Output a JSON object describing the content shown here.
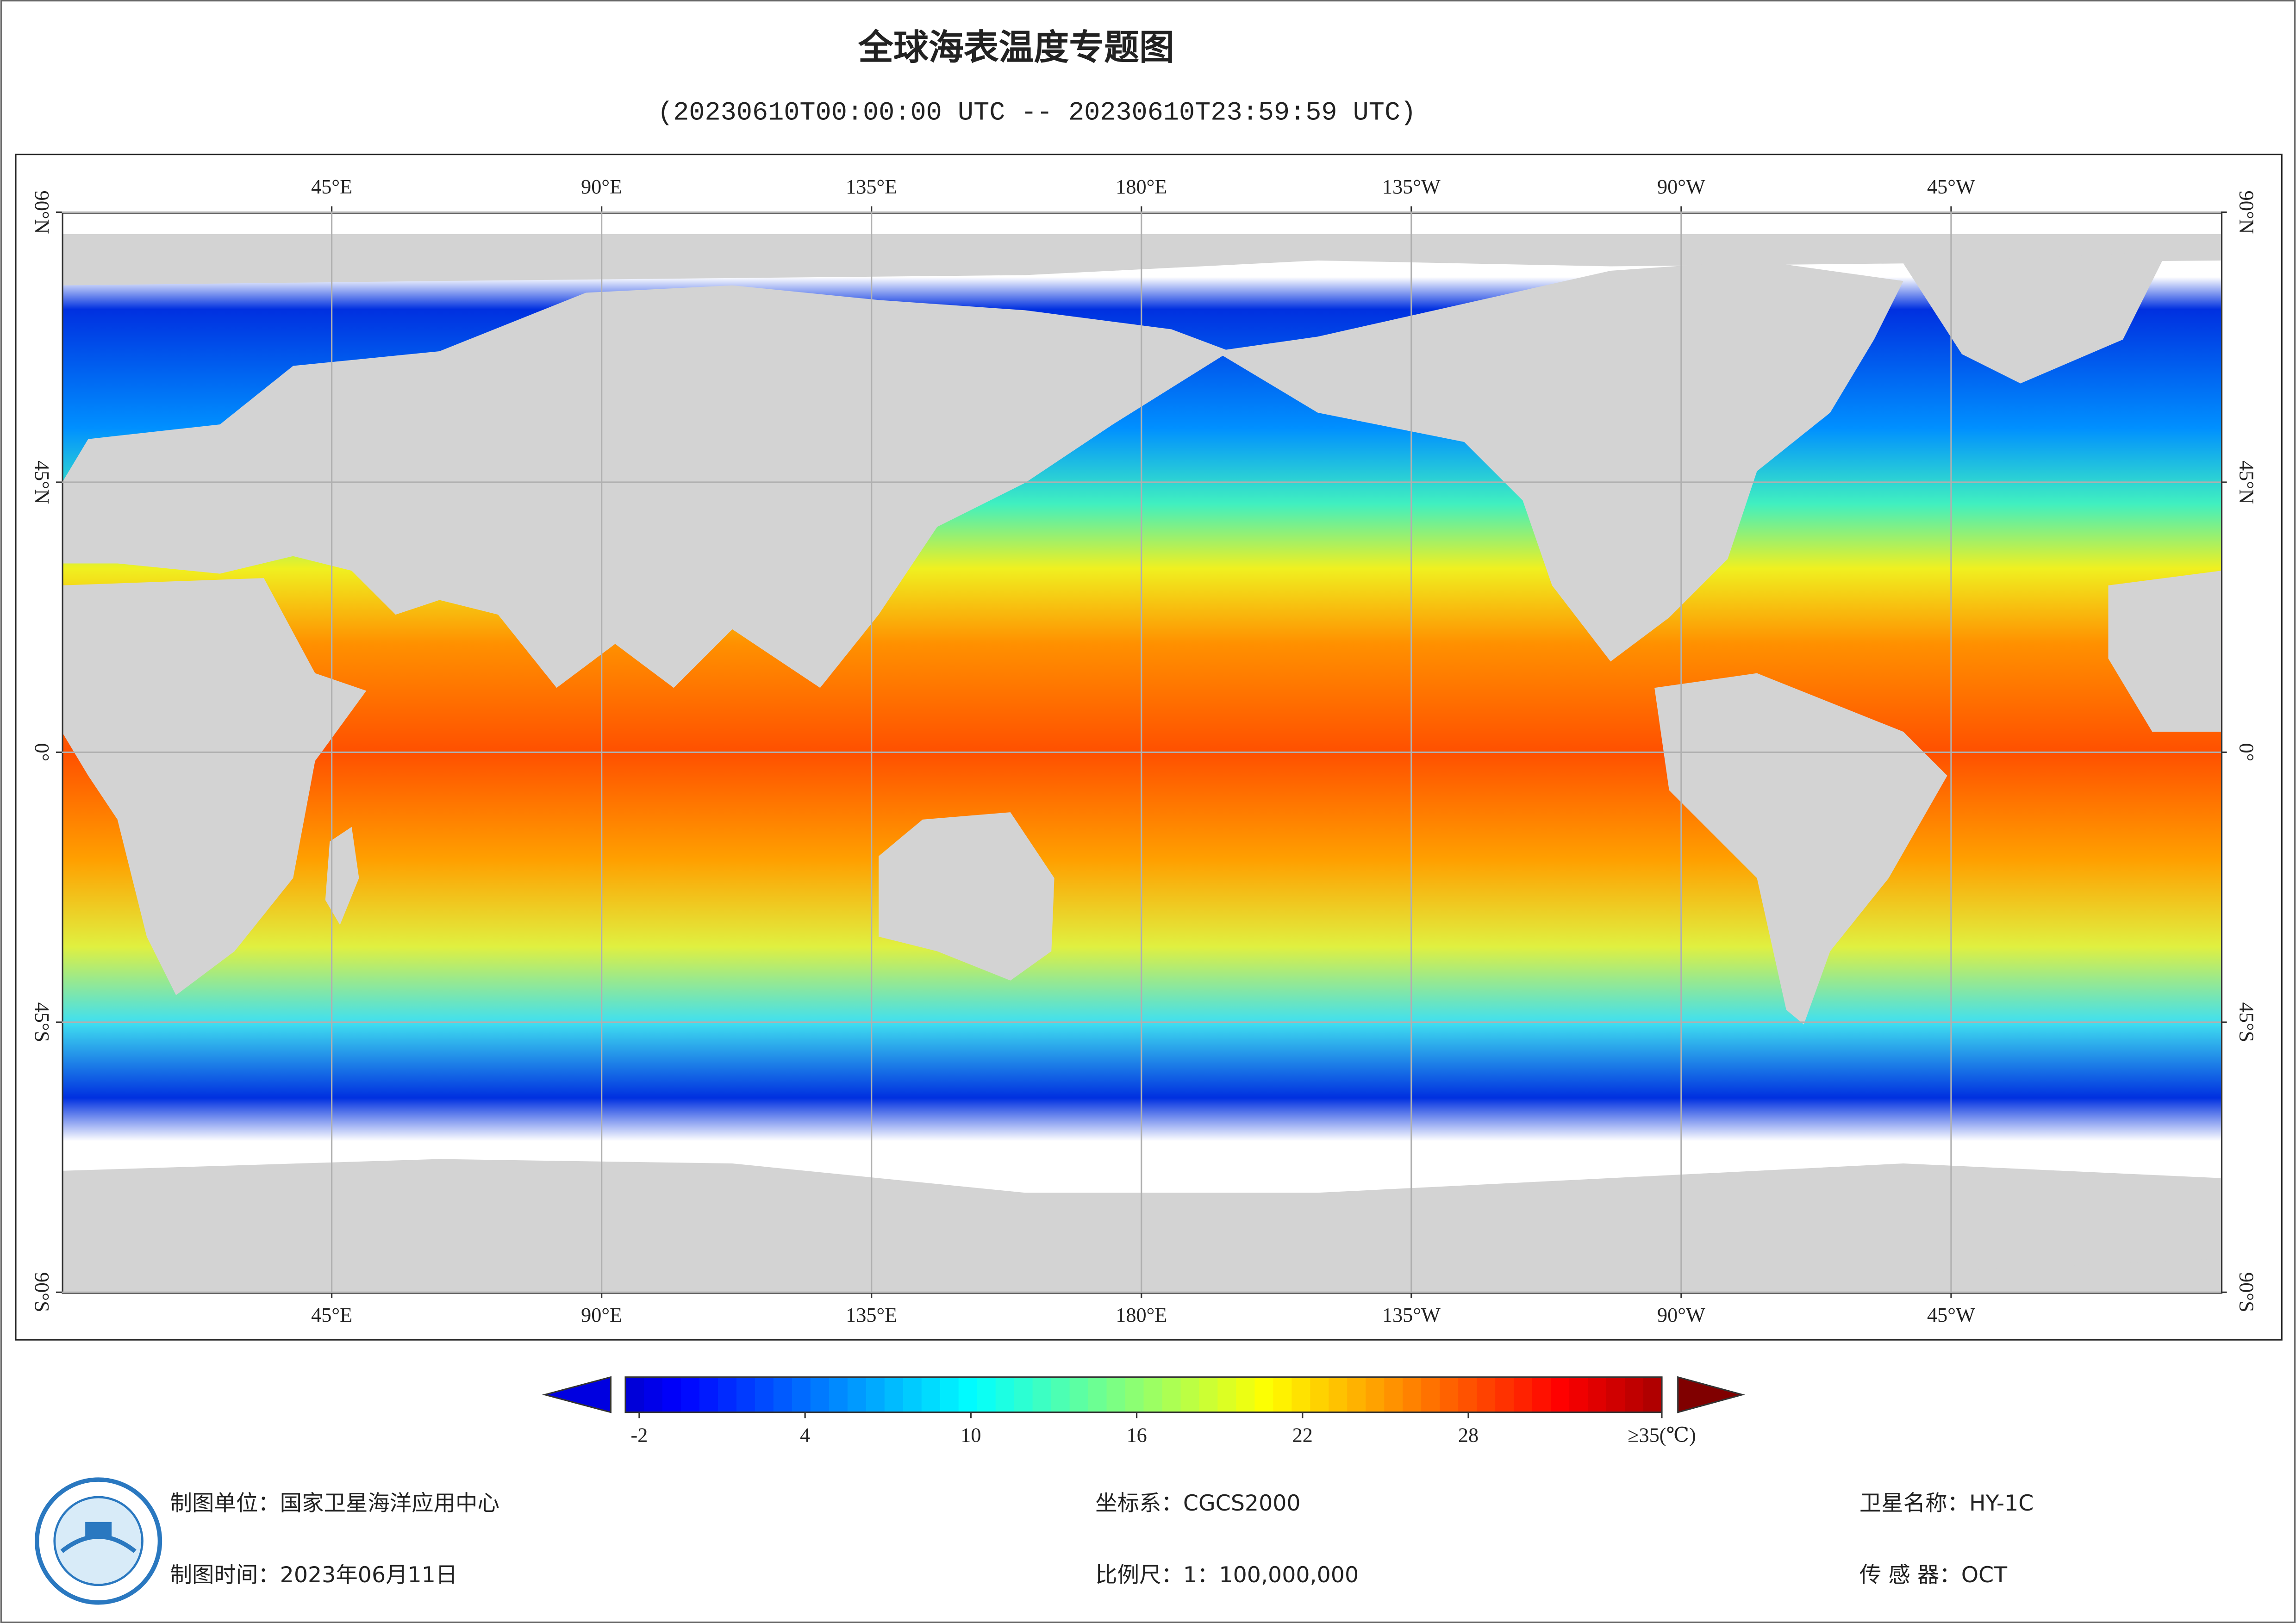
{
  "header": {
    "title": "全球海表温度专题图",
    "subtitle": "(20230610T00:00:00 UTC -- 20230610T23:59:59 UTC)"
  },
  "map": {
    "lon_ticks": [
      {
        "value": 45,
        "label": "45°E"
      },
      {
        "value": 90,
        "label": "90°E"
      },
      {
        "value": 135,
        "label": "135°E"
      },
      {
        "value": 180,
        "label": "180°E"
      },
      {
        "value": 225,
        "label": "135°W"
      },
      {
        "value": 270,
        "label": "90°W"
      },
      {
        "value": 315,
        "label": "45°W"
      }
    ],
    "lat_ticks": [
      {
        "value": 90,
        "label": "90°N"
      },
      {
        "value": 45,
        "label": "45°N"
      },
      {
        "value": 0,
        "label": "0°"
      },
      {
        "value": -45,
        "label": "45°S"
      },
      {
        "value": -90,
        "label": "90°S"
      }
    ],
    "lonlim": [
      0,
      360
    ],
    "latlim": [
      -90,
      90
    ]
  },
  "colorbar": {
    "clim": [
      -2.5,
      35
    ],
    "ticks": [
      -2,
      4,
      10,
      16,
      22,
      28,
      {
        "value": 35,
        "label": "≥35(℃)"
      }
    ]
  },
  "footer": {
    "unit": "制图单位：国家卫星海洋应用中心",
    "time": "制图时间：2023年06月11日",
    "crs": "坐标系：CGCS2000",
    "scale": "比例尺：1：100,000,000",
    "satellite": "卫星名称：HY-1C",
    "sensor": "传 感 器：OCT"
  }
}
